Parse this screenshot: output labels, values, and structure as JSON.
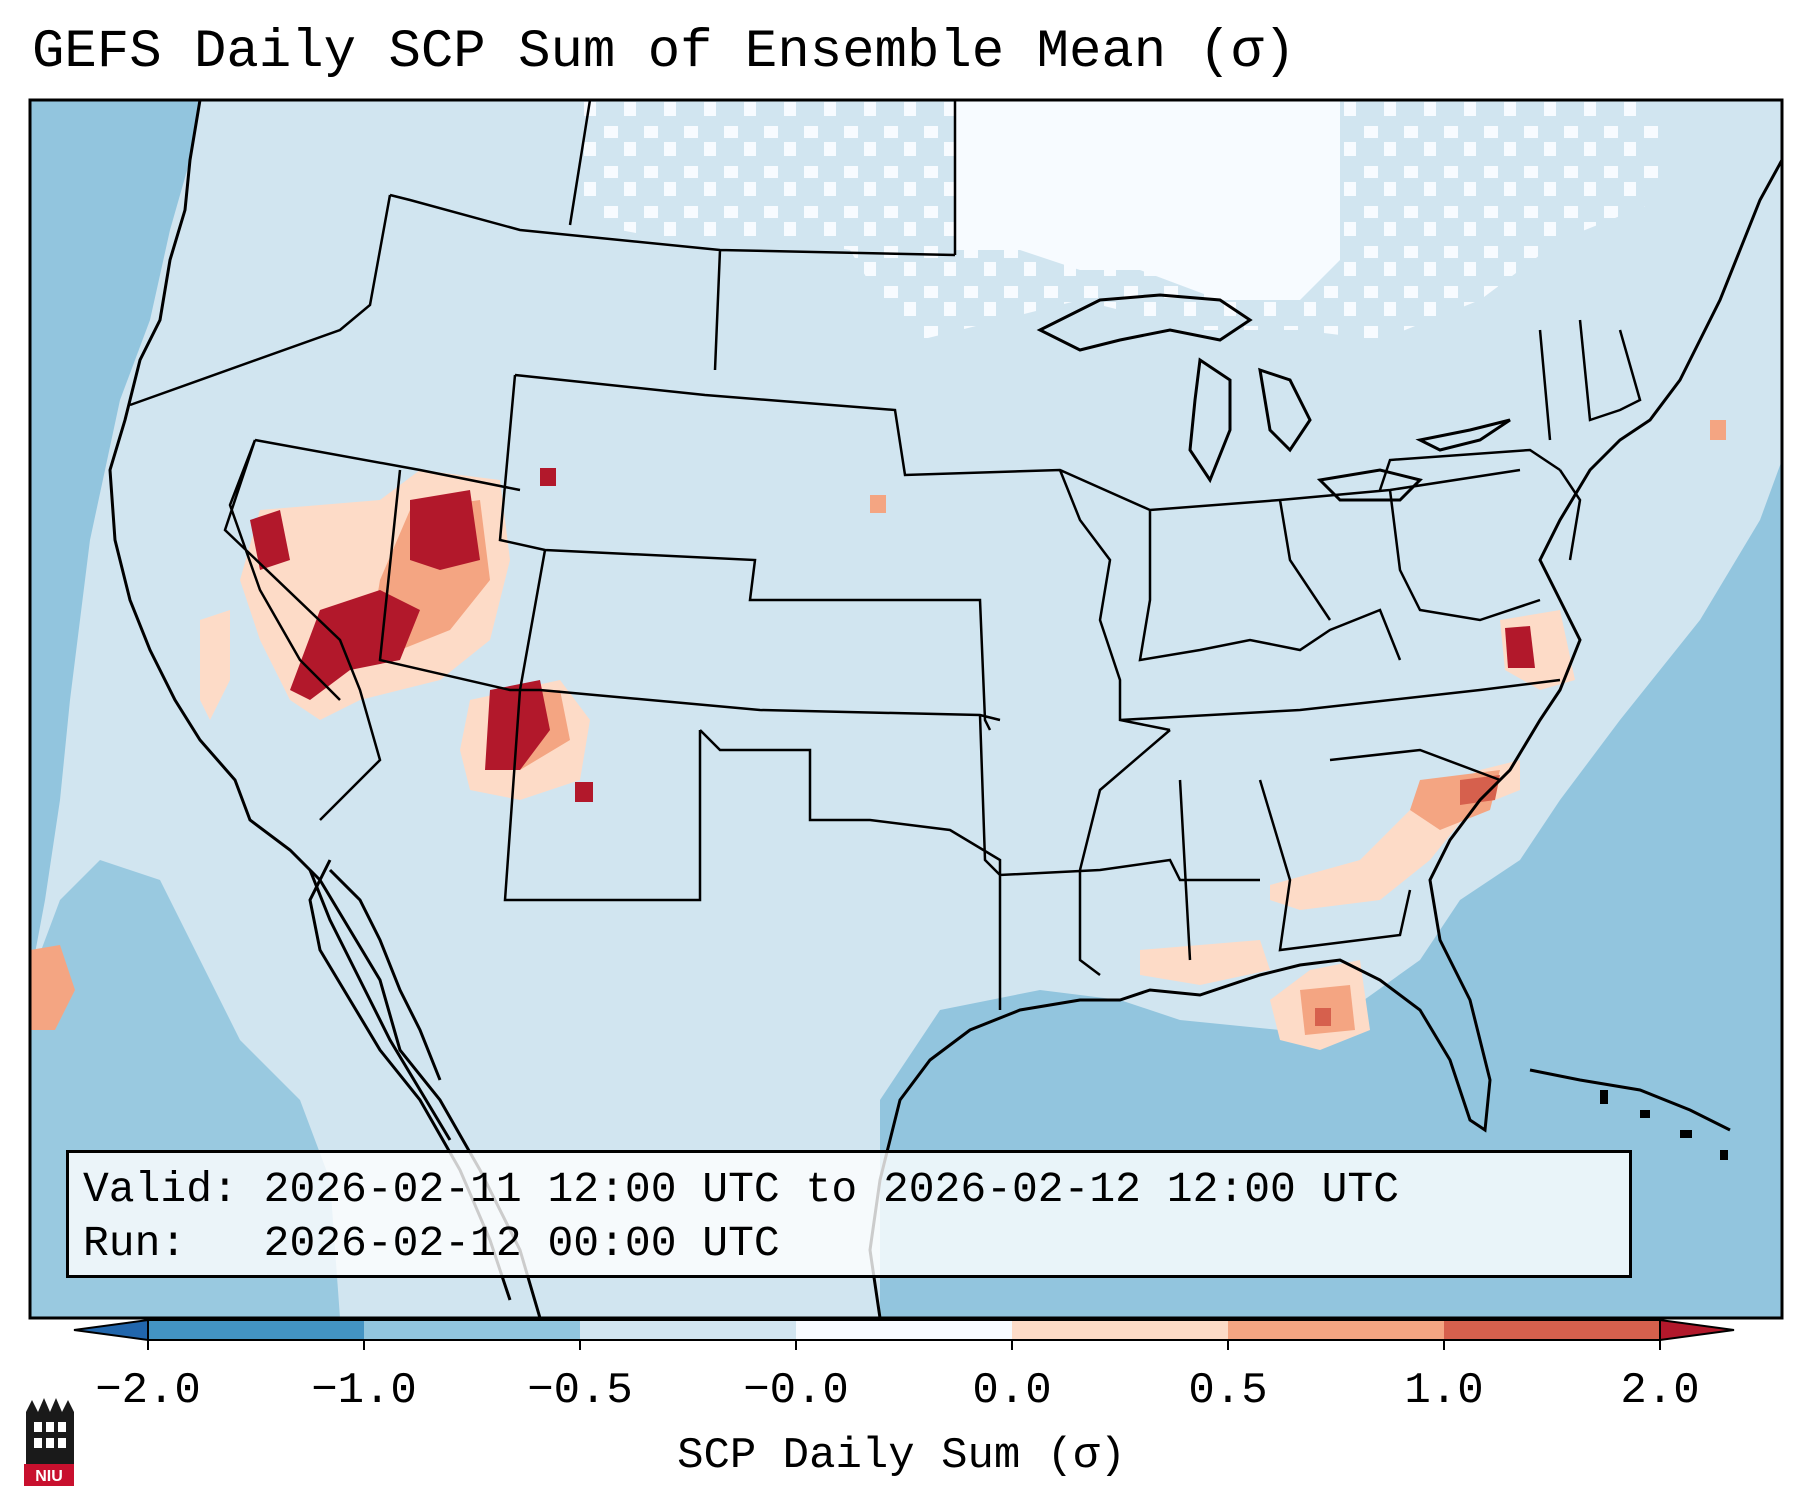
{
  "title": "GEFS Daily SCP Sum of Ensemble Mean (σ)",
  "info": {
    "valid_label": "Valid:",
    "valid_value": "2026-02-11 12:00 UTC to 2026-02-12 12:00 UTC",
    "run_label": "Run:",
    "run_value": "2026-02-12 00:00 UTC"
  },
  "colorbar": {
    "label": "SCP Daily Sum (σ)",
    "ticks": [
      "−2.0",
      "−1.0",
      "−0.5",
      "−0.0",
      "0.0",
      "0.5",
      "1.0",
      "2.0"
    ],
    "bin_colors": [
      "#4393c3",
      "#92c5de",
      "#d1e5f0",
      "#f7fbff",
      "#fddbc7",
      "#f4a582",
      "#d6604d"
    ],
    "under_color": "#2166ac",
    "over_color": "#b2182b"
  },
  "map_colors": {
    "ocean": "#92c5de",
    "land": "#d1e5f0",
    "near_zero": "#f7fbff",
    "border": "#000000"
  },
  "logo": {
    "text": "NIU",
    "icon": "niu-castle-logo-icon"
  }
}
